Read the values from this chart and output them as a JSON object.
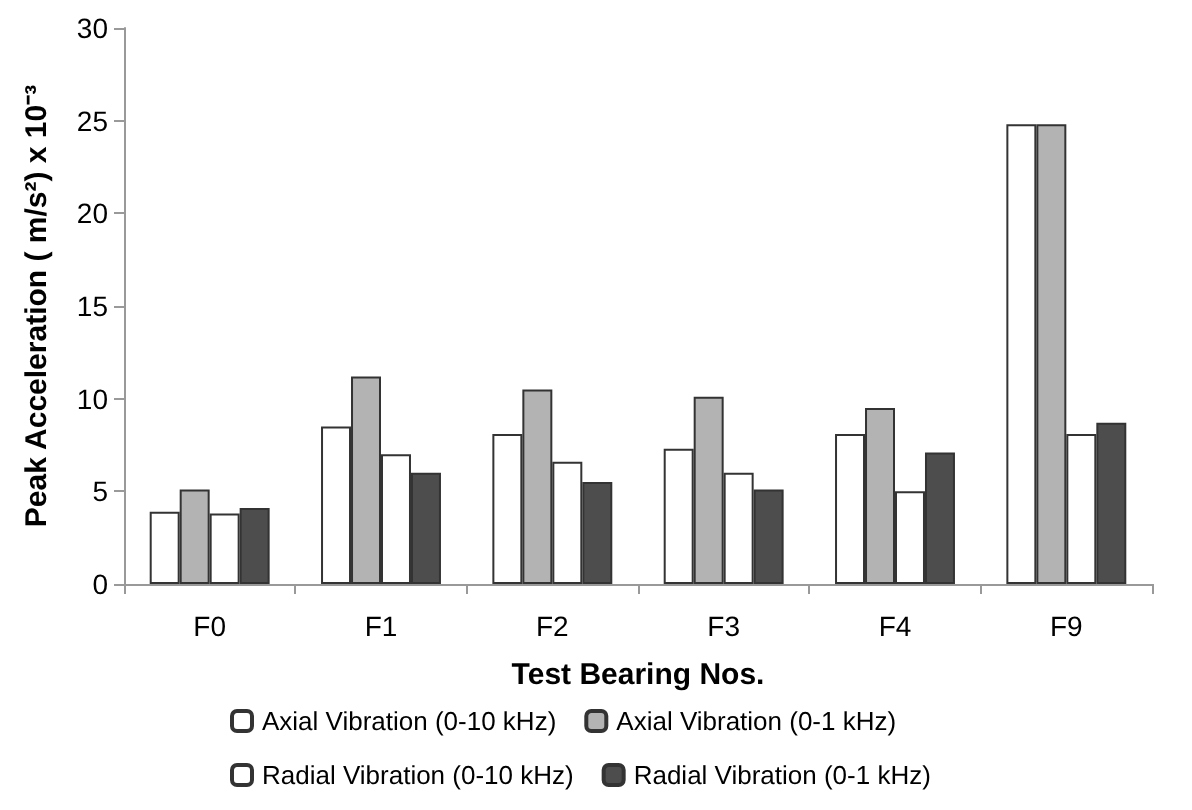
{
  "chart_data": {
    "type": "bar",
    "xlabel": "Test Bearing Nos.",
    "ylabel": "Peak Acceleration ( m/s²) x 10⁻³",
    "categories": [
      "F0",
      "F1",
      "F2",
      "F3",
      "F4",
      "F9"
    ],
    "series": [
      {
        "name": "Axial Vibration (0-10 kHz)",
        "color": "#ffffff",
        "values": [
          3.9,
          8.5,
          8.1,
          7.3,
          8.1,
          24.8
        ]
      },
      {
        "name": "Axial Vibration (0-1 kHz)",
        "color": "#b3b3b3",
        "values": [
          5.1,
          11.2,
          10.5,
          10.1,
          9.5,
          24.8
        ]
      },
      {
        "name": "Radial Vibration (0-10 kHz)",
        "color": "#ffffff",
        "values": [
          3.8,
          7.0,
          6.6,
          6.0,
          5.0,
          8.1
        ]
      },
      {
        "name": "Radial Vibration (0-1 kHz)",
        "color": "#4d4d4d",
        "values": [
          4.1,
          6.0,
          5.5,
          5.1,
          7.1,
          8.7
        ]
      }
    ],
    "ylim": [
      0,
      30
    ],
    "yticks": [
      0,
      5,
      10,
      15,
      20,
      25,
      30
    ],
    "grid": false,
    "legend": "bottom"
  }
}
